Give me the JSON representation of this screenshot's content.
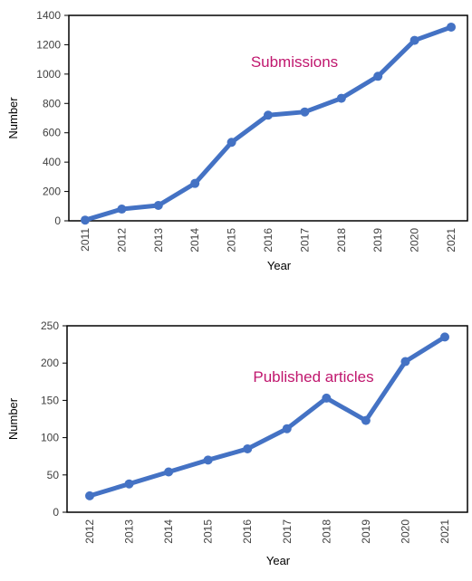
{
  "chart_data": [
    {
      "type": "line",
      "categories": [
        "2011",
        "2012",
        "2013",
        "2014",
        "2015",
        "2016",
        "2017",
        "2018",
        "2019",
        "2020",
        "2021"
      ],
      "series": [
        {
          "values": [
            5,
            80,
            105,
            255,
            535,
            720,
            742,
            835,
            985,
            1230,
            1320
          ]
        }
      ],
      "annotation": "Submissions",
      "xlabel": "Year",
      "ylabel": "Number",
      "ylim": [
        0,
        1400
      ],
      "yticks": [
        0,
        200,
        400,
        600,
        800,
        1000,
        1200,
        1400
      ],
      "grid": false,
      "colors": {
        "line": "#4472C4",
        "annotation": "#C0176E",
        "axis": "#000000"
      }
    },
    {
      "type": "line",
      "categories": [
        "2012",
        "2013",
        "2014",
        "2015",
        "2016",
        "2017",
        "2018",
        "2019",
        "2020",
        "2021"
      ],
      "series": [
        {
          "values": [
            22,
            38,
            54,
            70,
            85,
            112,
            153,
            123,
            202,
            235
          ]
        }
      ],
      "annotation": "Published articles",
      "xlabel": "Year",
      "ylabel": "Number",
      "ylim": [
        0,
        250
      ],
      "yticks": [
        0,
        50,
        100,
        150,
        200,
        250
      ],
      "grid": false,
      "colors": {
        "line": "#4472C4",
        "annotation": "#C0176E",
        "axis": "#000000"
      }
    }
  ]
}
